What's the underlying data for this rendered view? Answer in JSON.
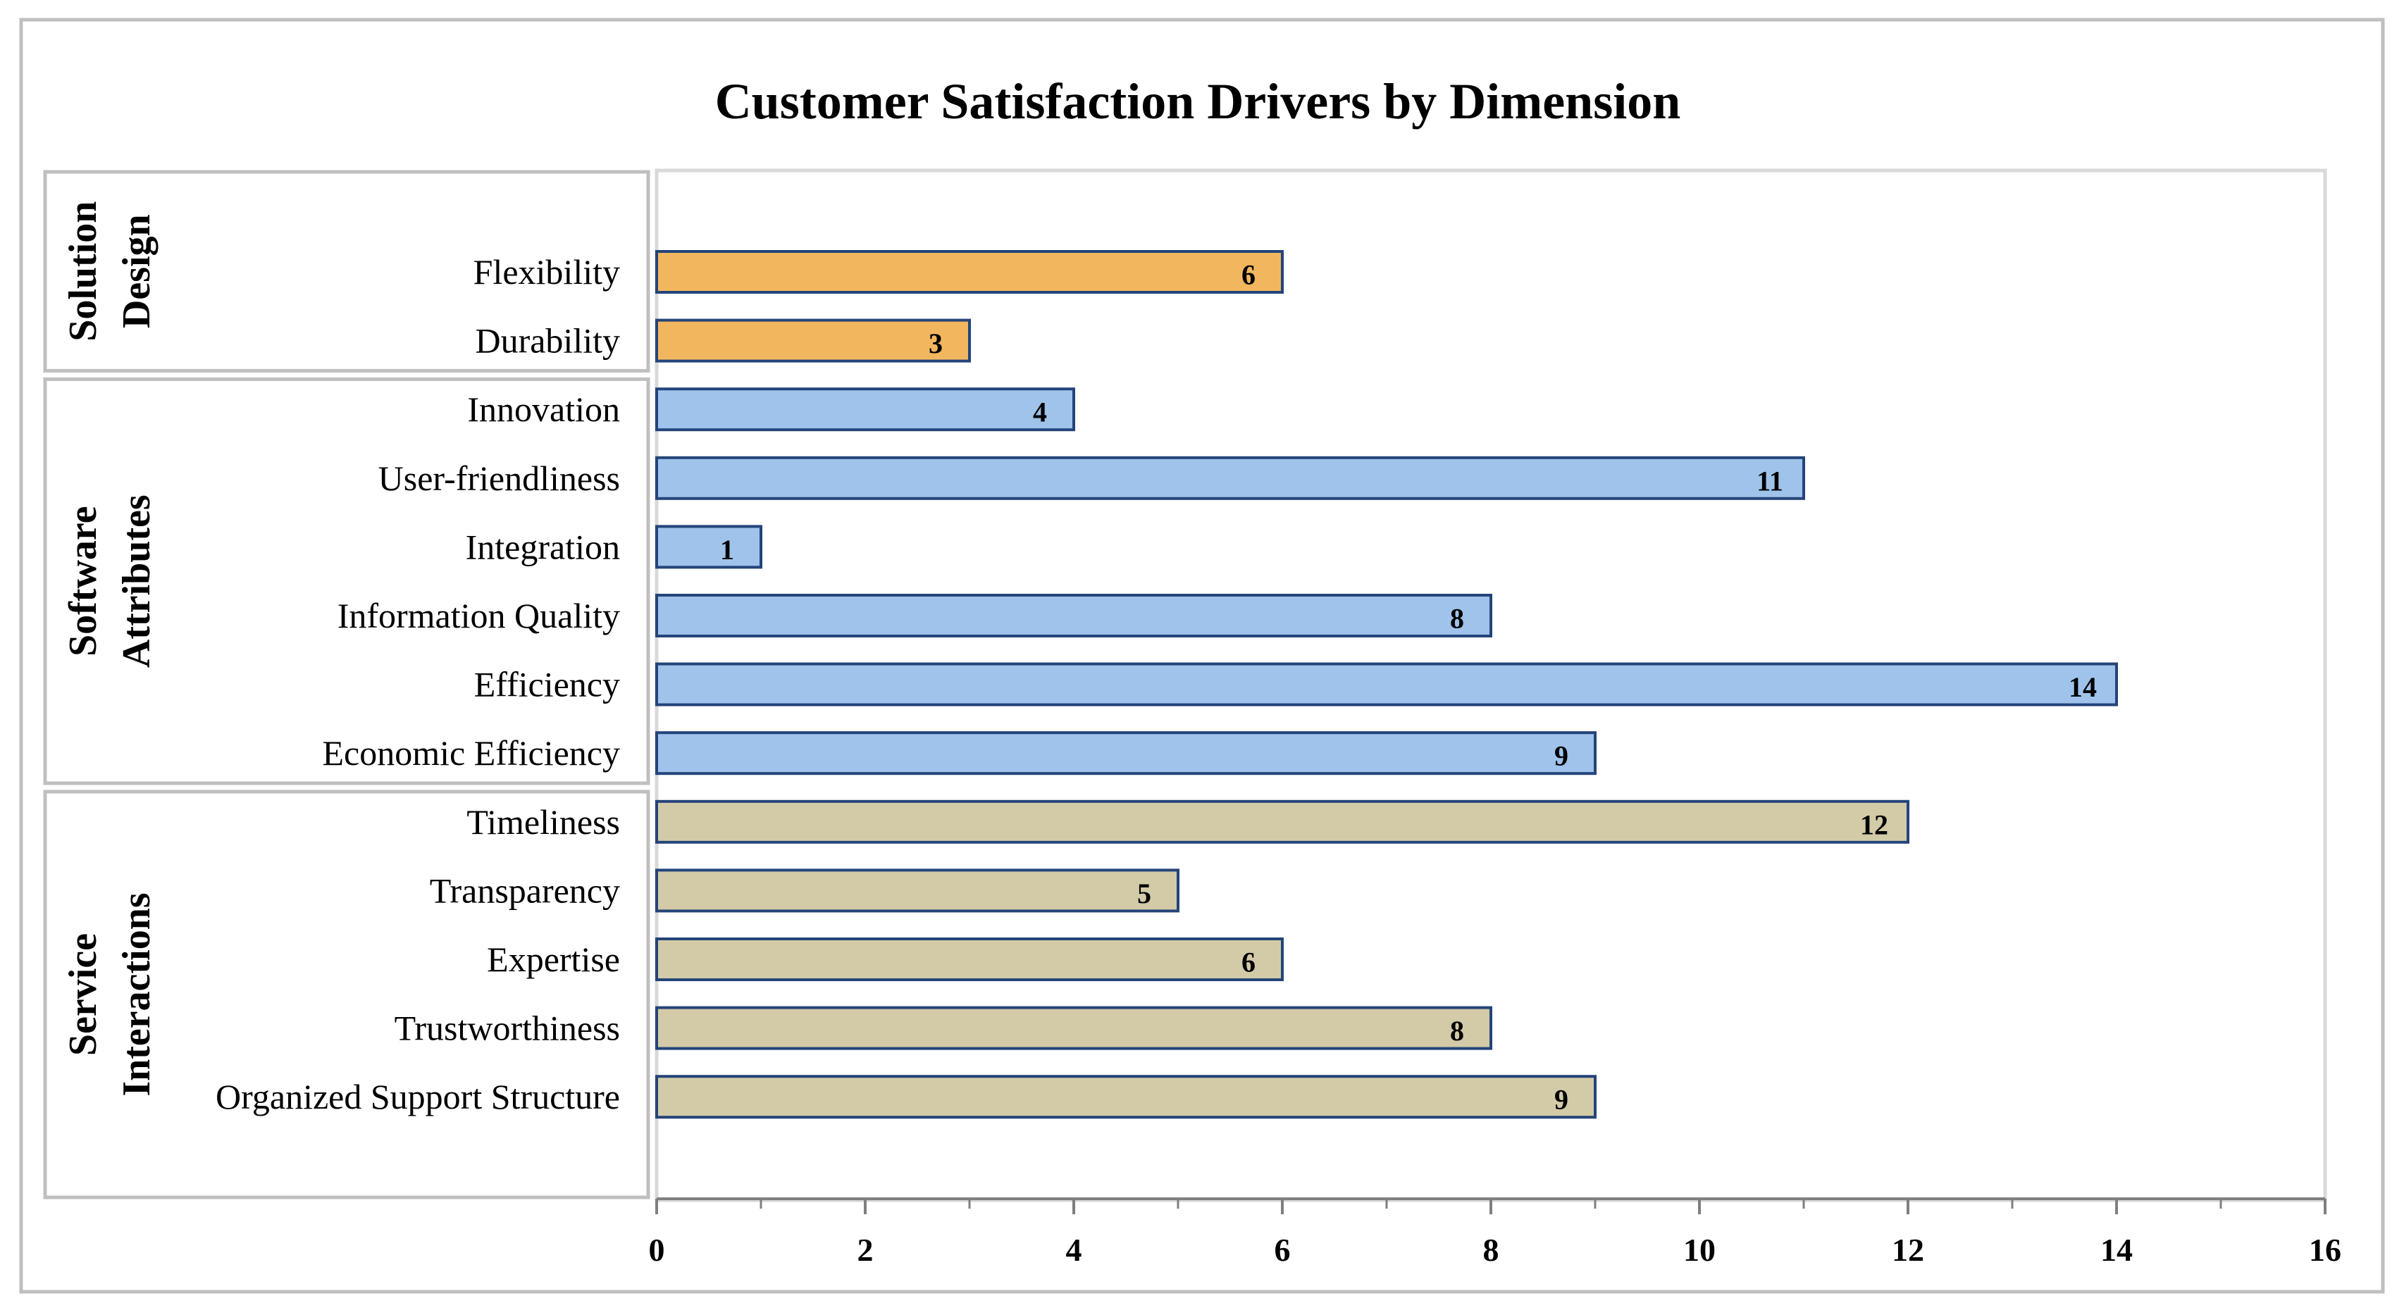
{
  "chart_data": {
    "type": "bar",
    "orientation": "horizontal",
    "title": "Customer Satisfaction Drivers by Dimension",
    "xlabel": "",
    "ylabel": "",
    "xlim": [
      0,
      16
    ],
    "ticks": [
      "0",
      "2",
      "4",
      "6",
      "8",
      "10",
      "12",
      "14",
      "16"
    ],
    "grid": false,
    "groups": [
      {
        "name": "Solution Design",
        "label_lines": [
          "Solution",
          "Design"
        ],
        "color": "#f2b75e",
        "categories": [
          "Flexibility",
          "Durability"
        ],
        "values": [
          6,
          3
        ]
      },
      {
        "name": "Software Attributes",
        "label_lines": [
          "Software",
          "Attributes"
        ],
        "color": "#9fc3ea",
        "categories": [
          "Innovation",
          "User-friendliness",
          "Integration",
          "Information Quality",
          "Efficiency",
          "Economic Efficiency"
        ],
        "values": [
          4,
          11,
          1,
          8,
          14,
          9
        ]
      },
      {
        "name": "Service Interactions",
        "label_lines": [
          "Service",
          "Interactions"
        ],
        "color": "#d3cba8",
        "categories": [
          "Timeliness",
          "Transparency",
          "Expertise",
          "Trustworthiness",
          "Organized Support Structure"
        ],
        "values": [
          12,
          5,
          6,
          8,
          9
        ]
      }
    ]
  },
  "colors": {
    "bar_stroke": "#24447a",
    "frame": "#bfbfbf",
    "axis": "#7f7f7f"
  }
}
